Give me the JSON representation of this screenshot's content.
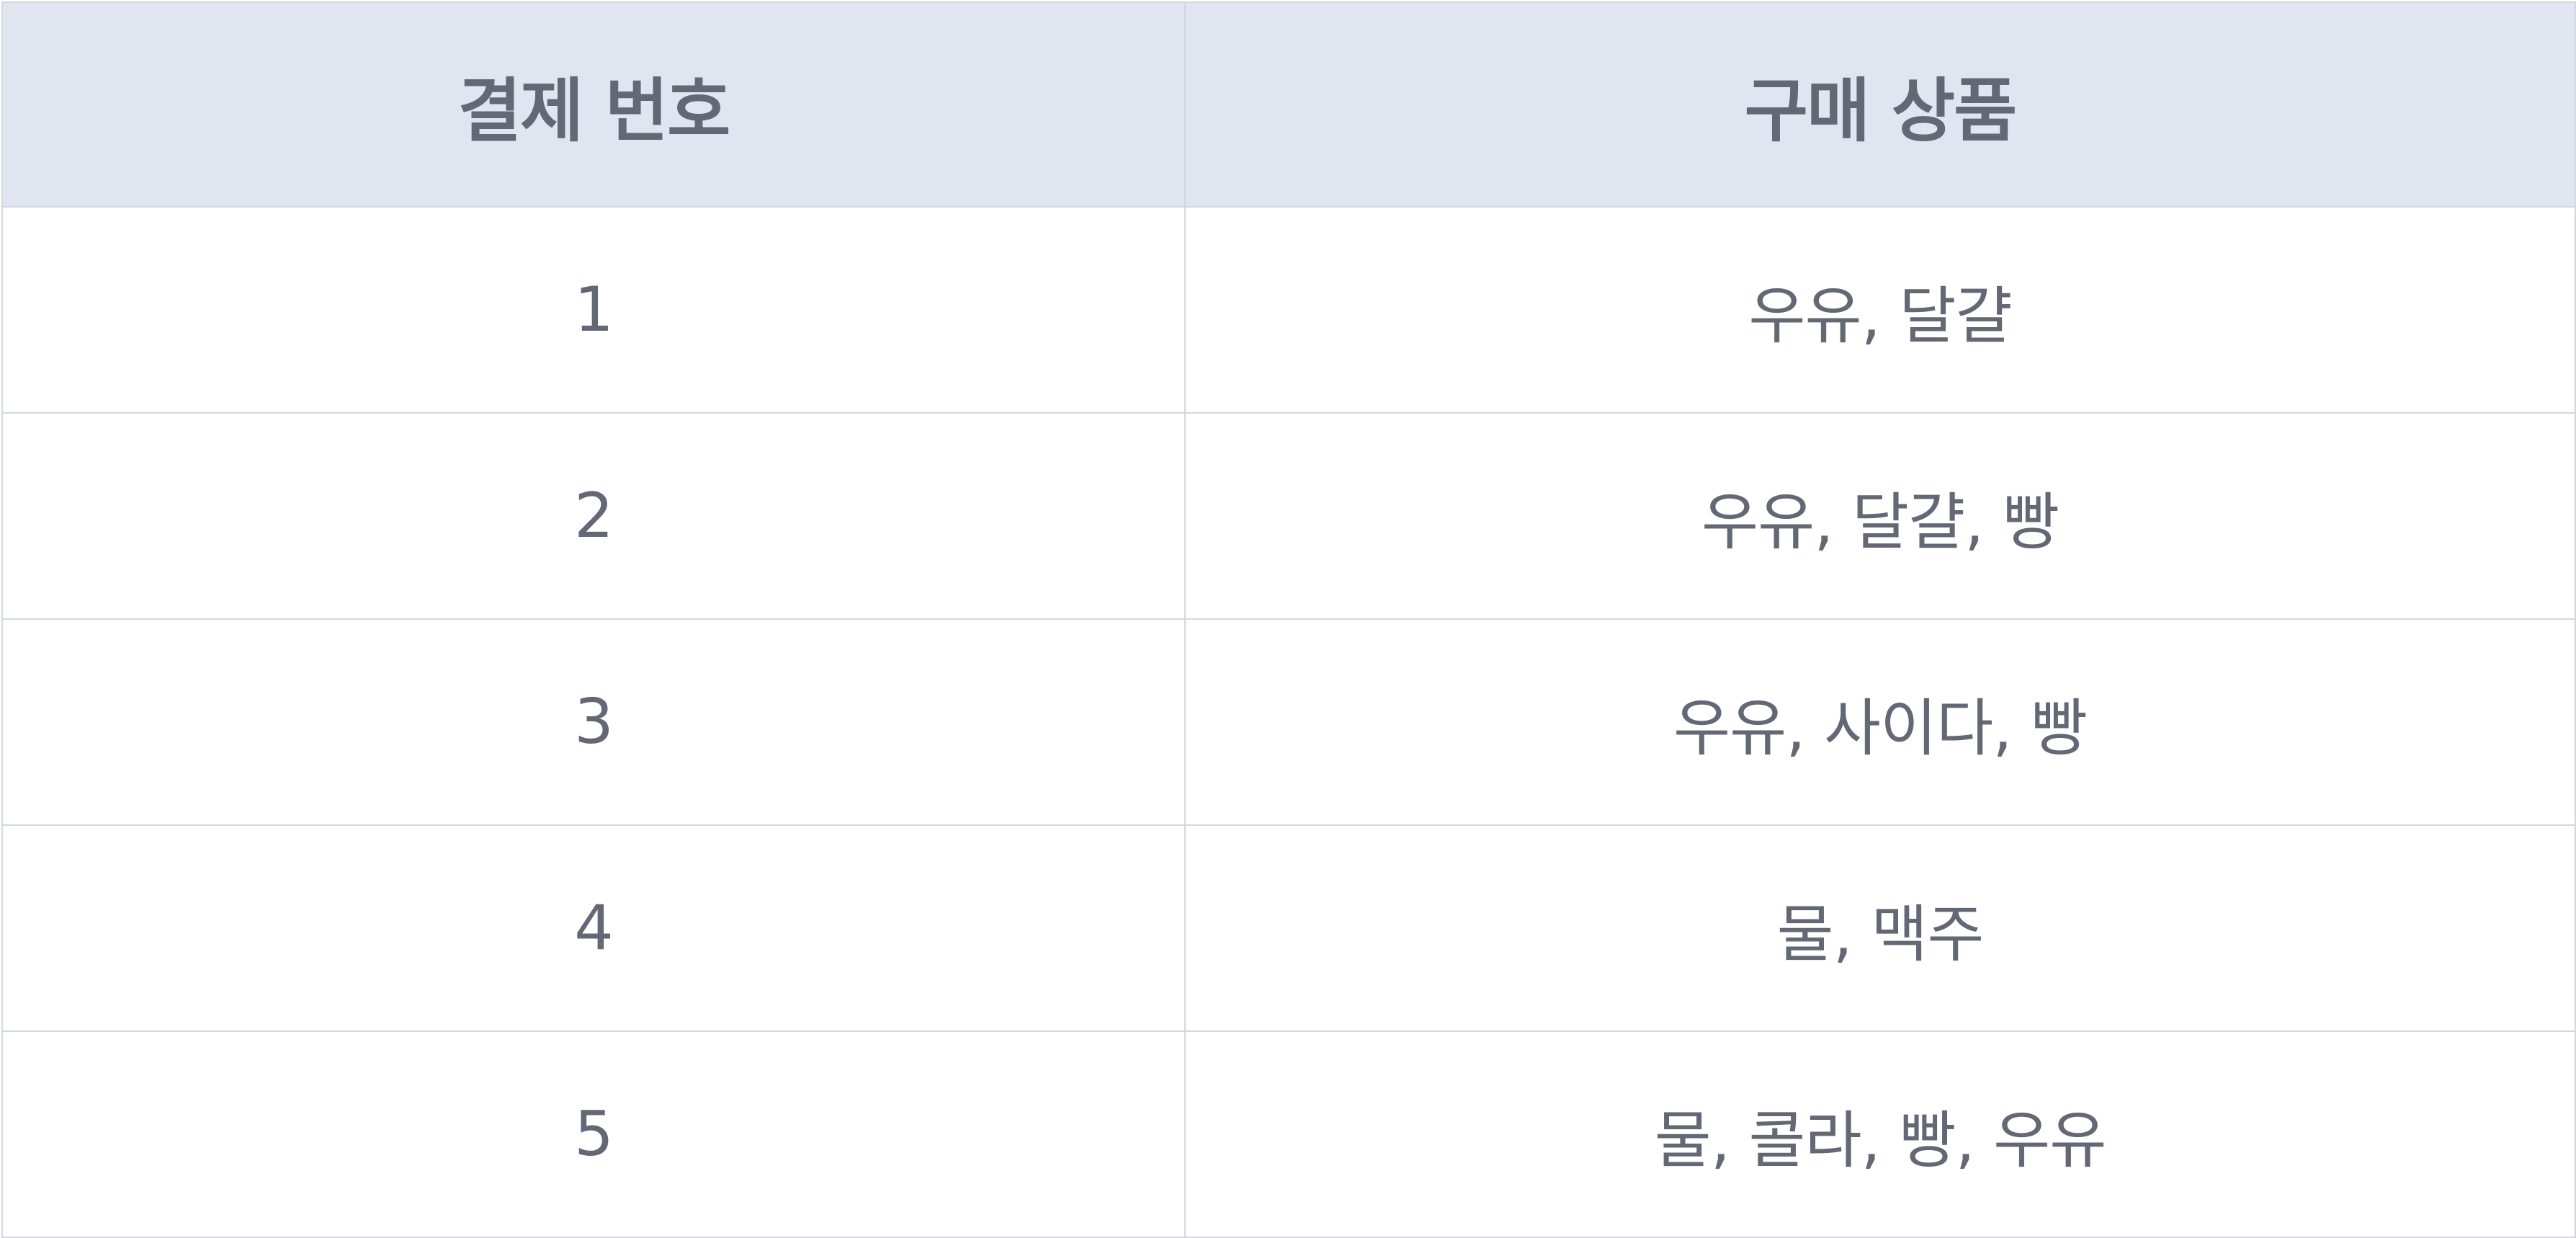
{
  "table": {
    "headers": [
      "결제 번호",
      "구매 상품"
    ],
    "rows": [
      [
        "1",
        "우유, 달걀"
      ],
      [
        "2",
        "우유, 달걀, 빵"
      ],
      [
        "3",
        "우유, 사이다, 빵"
      ],
      [
        "4",
        "물, 맥주"
      ],
      [
        "5",
        "물, 콜라, 빵, 우유"
      ]
    ]
  },
  "colors": {
    "header_bg": "#e0e5ef",
    "text": "#626876",
    "border": "#d4d7de"
  }
}
